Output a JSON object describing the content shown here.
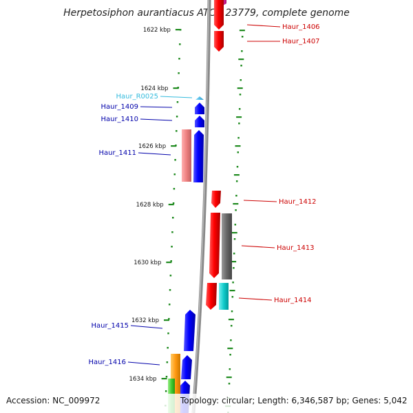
{
  "title": "Herpetosiphon aurantiacus ATCC 23779, complete genome",
  "scale_ticks": [
    {
      "label": "1622 kbp"
    },
    {
      "label": "1624 kbp"
    },
    {
      "label": "1626 kbp"
    },
    {
      "label": "1628 kbp"
    },
    {
      "label": "1630 kbp"
    },
    {
      "label": "1632 kbp"
    },
    {
      "label": "1634 kbp"
    }
  ],
  "genes": [
    {
      "name": "Haur_1406",
      "strand": "forward",
      "color": "#cc0000"
    },
    {
      "name": "Haur_1407",
      "strand": "forward",
      "color": "#cc0000"
    },
    {
      "name": "Haur_R0025",
      "strand": "reverse",
      "color": "#33bbdd"
    },
    {
      "name": "Haur_1409",
      "strand": "reverse",
      "color": "#0000aa"
    },
    {
      "name": "Haur_1410",
      "strand": "reverse",
      "color": "#0000aa"
    },
    {
      "name": "Haur_1411",
      "strand": "reverse",
      "color": "#0000aa"
    },
    {
      "name": "Haur_1412",
      "strand": "forward",
      "color": "#cc0000"
    },
    {
      "name": "Haur_1413",
      "strand": "forward",
      "color": "#cc0000"
    },
    {
      "name": "Haur_1414",
      "strand": "forward",
      "color": "#cc0000"
    },
    {
      "name": "Haur_1415",
      "strand": "reverse",
      "color": "#0000aa"
    },
    {
      "name": "Haur_1416",
      "strand": "reverse",
      "color": "#0000aa"
    }
  ],
  "colors": {
    "backbone": "#888888",
    "tick": "#1e8a1e",
    "forward_gene": "#ee0000",
    "reverse_gene": "#0000ee",
    "rna_gene": "#33bbdd",
    "pink_block": "#ee8888",
    "grey_block": "#666666",
    "cyan_block": "#11cccc",
    "orange_block": "#ff9911",
    "green_block": "#44cc33",
    "magenta_block": "#ee33aa"
  },
  "footer": {
    "accession": "Accession: NC_009972",
    "stats": "Topology: circular; Length: 6,346,587 bp; Genes: 5,042"
  }
}
